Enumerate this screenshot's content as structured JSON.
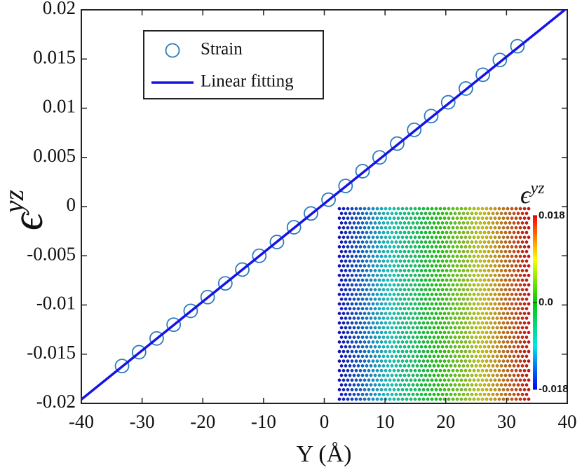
{
  "chart_data": {
    "type": "scatter",
    "xlabel": "Y (Å)",
    "ylabel": "ϵ",
    "ylabel_sup": "yz",
    "xlim": [
      -40,
      40
    ],
    "xticks": [
      -40,
      -30,
      -20,
      -10,
      0,
      10,
      20,
      30,
      40
    ],
    "ylim": [
      -0.02,
      0.02
    ],
    "yticks": [
      -0.02,
      -0.015,
      -0.01,
      -0.005,
      0,
      0.005,
      0.01,
      0.015,
      0.02
    ],
    "legend": "upper left",
    "series": [
      {
        "name": "Strain",
        "color": "#2b7bbd",
        "marker": "circle",
        "x": [
          -33.3,
          -30.5,
          -27.6,
          -24.8,
          -22.0,
          -19.2,
          -16.3,
          -13.5,
          -10.7,
          -7.8,
          -5.0,
          -2.2,
          0.7,
          3.5,
          6.3,
          9.1,
          12.0,
          14.8,
          17.6,
          20.4,
          23.3,
          26.1,
          28.9,
          31.8
        ],
        "values": [
          -0.0162,
          -0.0148,
          -0.0134,
          -0.012,
          -0.0106,
          -0.0092,
          -0.0078,
          -0.0064,
          -0.005,
          -0.0036,
          -0.0021,
          -0.0007,
          0.0007,
          0.0021,
          0.0036,
          0.005,
          0.0064,
          0.0078,
          0.0092,
          0.0106,
          0.012,
          0.0134,
          0.0149,
          0.0163
        ]
      },
      {
        "name": "Linear fitting",
        "color": "#1414e6",
        "marker": "line",
        "x": [
          -40,
          40
        ],
        "values": [
          -0.0196,
          0.0202
        ]
      }
    ],
    "inset": {
      "title": "ϵ",
      "title_sup": "yz",
      "colorbar_lim": [
        -0.018,
        0.018
      ],
      "colorbar_ticks": [
        {
          "value": 0.018,
          "label": "0.018"
        },
        {
          "value": 0,
          "label": "0.0"
        },
        {
          "value": -0.018,
          "label": "-0.018"
        }
      ]
    }
  }
}
